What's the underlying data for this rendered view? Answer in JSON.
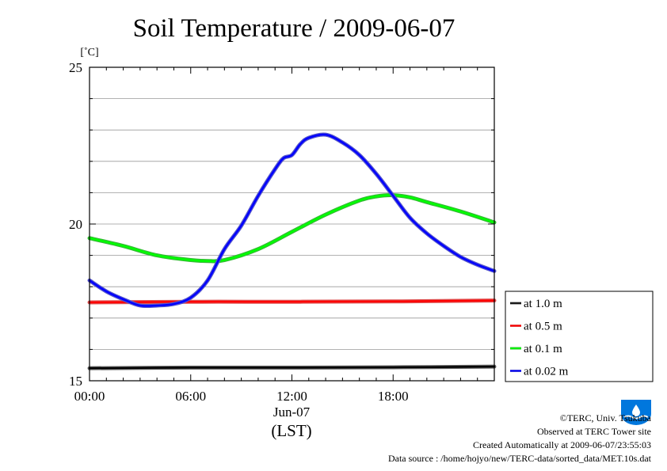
{
  "chart_data": {
    "type": "line",
    "title": "Soil Temperature / 2009-06-07",
    "ylabel": "[˚C]",
    "ylim": [
      15,
      25
    ],
    "yticks": [
      "15",
      "20",
      "25"
    ],
    "xlim": [
      0,
      24
    ],
    "xticks": [
      {
        "value": 0,
        "label": "00:00"
      },
      {
        "value": 6,
        "label": "06:00"
      },
      {
        "value": 12,
        "label": "12:00"
      },
      {
        "value": 18,
        "label": "18:00"
      }
    ],
    "xdate": "Jun-07",
    "xlabel": "(LST)",
    "grid": true,
    "legend_position": "right",
    "series": [
      {
        "name": "at 1.0 m",
        "color": "#000000",
        "halo": "#666666",
        "x": [
          0,
          6,
          12,
          18,
          24
        ],
        "y": [
          15.4,
          15.42,
          15.42,
          15.43,
          15.45
        ]
      },
      {
        "name": "at 0.5 m",
        "color": "#ff0000",
        "halo": "#dd5555",
        "x": [
          0,
          6,
          12,
          18,
          24
        ],
        "y": [
          17.5,
          17.52,
          17.52,
          17.53,
          17.56
        ]
      },
      {
        "name": "at 0.1 m",
        "color": "#00ff00",
        "halo": "#33bb33",
        "x": [
          0,
          2,
          4,
          6,
          7,
          8,
          10,
          12,
          14,
          16,
          17,
          18,
          19,
          20,
          22,
          24
        ],
        "y": [
          19.55,
          19.3,
          19.0,
          18.85,
          18.82,
          18.85,
          19.2,
          19.75,
          20.3,
          20.75,
          20.88,
          20.92,
          20.85,
          20.7,
          20.4,
          20.05
        ]
      },
      {
        "name": "at 0.02 m",
        "color": "#0000ff",
        "halo": "#5555cc",
        "x": [
          0,
          1,
          2,
          3,
          4,
          5,
          6,
          7,
          8,
          9,
          10,
          11,
          11.5,
          12,
          12.5,
          13,
          14,
          15,
          16,
          17,
          18,
          19,
          20,
          21,
          22,
          23,
          24
        ],
        "y": [
          18.2,
          17.85,
          17.6,
          17.4,
          17.4,
          17.45,
          17.65,
          18.2,
          19.2,
          19.95,
          20.9,
          21.75,
          22.1,
          22.2,
          22.55,
          22.75,
          22.85,
          22.6,
          22.2,
          21.6,
          20.9,
          20.2,
          19.7,
          19.3,
          18.95,
          18.7,
          18.5
        ]
      }
    ]
  },
  "credits": {
    "copyright": "©TERC, Univ. Tsukuba",
    "observed": "Observed at TERC Tower site",
    "created": "Created Automatically at 2009-06-07/23:55:03",
    "source": "Data source : /home/hojyo/new/TERC-data/sorted_data/MET.10s.dat",
    "logo_text": "TERC"
  },
  "colors": {
    "grid": "#999999",
    "axis": "#000000",
    "logo": "#0077dd"
  }
}
